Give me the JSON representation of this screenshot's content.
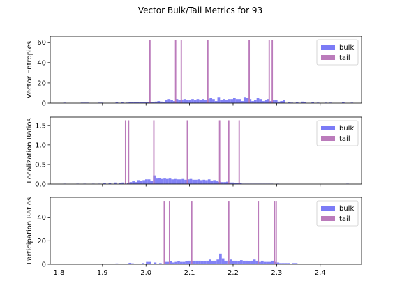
{
  "figure": {
    "title": "Vector Bulk/Tail Metrics for 93"
  },
  "colors": {
    "bulk": "#7b7bf6",
    "tail": "#bb7bbb",
    "axis": "#000000"
  },
  "chart_data": [
    {
      "type": "bar",
      "ylabel": "Vector Entropies",
      "xlim": [
        1.78,
        2.495
      ],
      "ylim": [
        0,
        66
      ],
      "yticks": [
        0,
        20,
        40,
        60
      ],
      "xticks": [
        1.8,
        1.9,
        2.0,
        2.1,
        2.2,
        2.3,
        2.4
      ],
      "show_xticklabels": false,
      "legend": {
        "position": "top-right",
        "entries": [
          "bulk",
          "tail"
        ]
      },
      "series": [
        {
          "name": "bulk",
          "kind": "histogram",
          "bin_width": 0.006,
          "bins": [
            [
              1.81,
              0.5
            ],
            [
              1.85,
              0.5
            ],
            [
              1.856,
              0.5
            ],
            [
              1.862,
              0.5
            ],
            [
              1.89,
              0.5
            ],
            [
              1.896,
              0.5
            ],
            [
              1.93,
              1
            ],
            [
              1.942,
              1
            ],
            [
              1.954,
              0.5
            ],
            [
              1.96,
              1
            ],
            [
              1.966,
              1
            ],
            [
              1.972,
              1
            ],
            [
              1.978,
              1
            ],
            [
              1.984,
              1
            ],
            [
              1.99,
              1
            ],
            [
              1.996,
              1
            ],
            [
              2.002,
              1
            ],
            [
              2.008,
              1
            ],
            [
              2.014,
              1
            ],
            [
              2.02,
              1.5
            ],
            [
              2.026,
              2
            ],
            [
              2.032,
              1.5
            ],
            [
              2.038,
              1
            ],
            [
              2.044,
              3
            ],
            [
              2.05,
              4
            ],
            [
              2.056,
              3
            ],
            [
              2.062,
              2
            ],
            [
              2.068,
              4
            ],
            [
              2.074,
              3
            ],
            [
              2.08,
              3.5
            ],
            [
              2.086,
              4
            ],
            [
              2.092,
              3
            ],
            [
              2.098,
              3
            ],
            [
              2.104,
              4
            ],
            [
              2.11,
              3
            ],
            [
              2.116,
              4
            ],
            [
              2.122,
              3
            ],
            [
              2.128,
              4
            ],
            [
              2.134,
              3
            ],
            [
              2.14,
              4
            ],
            [
              2.146,
              5
            ],
            [
              2.152,
              4
            ],
            [
              2.158,
              2
            ],
            [
              2.164,
              6
            ],
            [
              2.17,
              3
            ],
            [
              2.176,
              4
            ],
            [
              2.182,
              3
            ],
            [
              2.188,
              4
            ],
            [
              2.194,
              4
            ],
            [
              2.2,
              5
            ],
            [
              2.206,
              4
            ],
            [
              2.212,
              4
            ],
            [
              2.218,
              2
            ],
            [
              2.224,
              6
            ],
            [
              2.23,
              5
            ],
            [
              2.236,
              4
            ],
            [
              2.242,
              2
            ],
            [
              2.248,
              3
            ],
            [
              2.254,
              5
            ],
            [
              2.26,
              4
            ],
            [
              2.266,
              2
            ],
            [
              2.272,
              3
            ],
            [
              2.278,
              4
            ],
            [
              2.284,
              2
            ],
            [
              2.29,
              3
            ],
            [
              2.296,
              3
            ],
            [
              2.302,
              1.5
            ],
            [
              2.308,
              2
            ],
            [
              2.314,
              3
            ],
            [
              2.326,
              1
            ],
            [
              2.332,
              0.5
            ],
            [
              2.344,
              1
            ],
            [
              2.356,
              1.5
            ],
            [
              2.362,
              1
            ],
            [
              2.38,
              1
            ],
            [
              2.392,
              0.5
            ],
            [
              2.41,
              0.5
            ],
            [
              2.42,
              0.5
            ],
            [
              2.45,
              0.8
            ],
            [
              2.47,
              0.5
            ]
          ]
        },
        {
          "name": "tail",
          "kind": "spikes",
          "bin_width": 0.003,
          "points": [
            [
              2.009,
              62.5
            ],
            [
              2.068,
              62.5
            ],
            [
              2.081,
              62.5
            ],
            [
              2.142,
              62.5
            ],
            [
              2.237,
              62.5
            ],
            [
              2.283,
              62.5
            ],
            [
              2.29,
              62.5
            ]
          ]
        }
      ]
    },
    {
      "type": "bar",
      "ylabel": "Localization Ratios",
      "xlim": [
        1.78,
        2.495
      ],
      "ylim": [
        0,
        1.71
      ],
      "yticks": [
        0.0,
        0.5,
        1.0,
        1.5
      ],
      "ytick_labels": [
        "0.0",
        "0.5",
        "1.0",
        "1.5"
      ],
      "xticks": [
        1.8,
        1.9,
        2.0,
        2.1,
        2.2,
        2.3,
        2.4
      ],
      "show_xticklabels": false,
      "legend": {
        "position": "top-right",
        "entries": [
          "bulk",
          "tail"
        ]
      },
      "series": [
        {
          "name": "bulk",
          "kind": "histogram",
          "bin_width": 0.006,
          "bins": [
            [
              1.81,
              0.01
            ],
            [
              1.84,
              0.01
            ],
            [
              1.856,
              0.01
            ],
            [
              1.876,
              0.01
            ],
            [
              1.89,
              0.01
            ],
            [
              1.902,
              0.02
            ],
            [
              1.914,
              0.02
            ],
            [
              1.926,
              0.04
            ],
            [
              1.938,
              0.03
            ],
            [
              1.944,
              0.04
            ],
            [
              1.956,
              0.02
            ],
            [
              1.962,
              0.05
            ],
            [
              1.968,
              0.07
            ],
            [
              1.974,
              0.05
            ],
            [
              1.98,
              0.1
            ],
            [
              1.986,
              0.08
            ],
            [
              1.992,
              0.1
            ],
            [
              1.998,
              0.12
            ],
            [
              2.004,
              0.12
            ],
            [
              2.01,
              0.08
            ],
            [
              2.016,
              0.22
            ],
            [
              2.022,
              0.14
            ],
            [
              2.028,
              0.15
            ],
            [
              2.034,
              0.13
            ],
            [
              2.04,
              0.14
            ],
            [
              2.046,
              0.13
            ],
            [
              2.052,
              0.14
            ],
            [
              2.058,
              0.12
            ],
            [
              2.064,
              0.13
            ],
            [
              2.07,
              0.12
            ],
            [
              2.076,
              0.12
            ],
            [
              2.082,
              0.13
            ],
            [
              2.088,
              0.11
            ],
            [
              2.094,
              0.12
            ],
            [
              2.1,
              0.13
            ],
            [
              2.106,
              0.11
            ],
            [
              2.112,
              0.11
            ],
            [
              2.118,
              0.12
            ],
            [
              2.124,
              0.1
            ],
            [
              2.13,
              0.11
            ],
            [
              2.136,
              0.1
            ],
            [
              2.142,
              0.12
            ],
            [
              2.148,
              0.09
            ],
            [
              2.154,
              0.1
            ],
            [
              2.16,
              0.07
            ],
            [
              2.166,
              0.06
            ],
            [
              2.172,
              0.05
            ],
            [
              2.178,
              0.05
            ],
            [
              2.184,
              0.06
            ],
            [
              2.19,
              0.04
            ],
            [
              2.196,
              0.04
            ],
            [
              2.202,
              0.02
            ],
            [
              2.208,
              0.02
            ],
            [
              2.214,
              0.03
            ],
            [
              2.22,
              0.01
            ],
            [
              2.226,
              0.01
            ],
            [
              2.232,
              0.01
            ],
            [
              2.238,
              0.01
            ],
            [
              2.244,
              0.01
            ],
            [
              2.25,
              0.01
            ],
            [
              2.256,
              0.01
            ],
            [
              2.262,
              0.01
            ],
            [
              2.268,
              0.01
            ],
            [
              2.274,
              0.01
            ],
            [
              2.28,
              0.01
            ],
            [
              2.286,
              0.01
            ],
            [
              2.3,
              0.01
            ],
            [
              2.46,
              0.01
            ]
          ]
        },
        {
          "name": "tail",
          "kind": "spikes",
          "bin_width": 0.003,
          "points": [
            [
              1.953,
              1.63
            ],
            [
              1.96,
              1.63
            ],
            [
              2.018,
              1.63
            ],
            [
              2.095,
              1.63
            ],
            [
              2.169,
              1.63
            ],
            [
              2.19,
              1.63
            ],
            [
              2.214,
              1.63
            ]
          ]
        }
      ]
    },
    {
      "type": "bar",
      "ylabel": "Participation Ratios",
      "xlim": [
        1.78,
        2.495
      ],
      "ylim": [
        0,
        57
      ],
      "yticks": [
        0,
        20,
        40
      ],
      "xticks": [
        1.8,
        1.9,
        2.0,
        2.1,
        2.2,
        2.3,
        2.4
      ],
      "xtick_labels": [
        "1.8",
        "1.9",
        "2.0",
        "2.1",
        "2.2",
        "2.3",
        "2.4"
      ],
      "show_xticklabels": true,
      "legend": {
        "position": "top-right",
        "entries": [
          "bulk",
          "tail"
        ]
      },
      "series": [
        {
          "name": "bulk",
          "kind": "histogram",
          "bin_width": 0.006,
          "bins": [
            [
              1.8,
              0.5
            ],
            [
              1.9,
              0.5
            ],
            [
              1.93,
              0.7
            ],
            [
              1.936,
              0.5
            ],
            [
              1.96,
              1.2
            ],
            [
              1.966,
              0.8
            ],
            [
              1.978,
              0.6
            ],
            [
              1.99,
              1
            ],
            [
              2.0,
              2
            ],
            [
              2.006,
              2
            ],
            [
              2.018,
              1.5
            ],
            [
              2.03,
              1
            ],
            [
              2.042,
              2
            ],
            [
              2.048,
              2
            ],
            [
              2.054,
              2.5
            ],
            [
              2.06,
              1.5
            ],
            [
              2.066,
              2
            ],
            [
              2.072,
              2.5
            ],
            [
              2.078,
              2
            ],
            [
              2.084,
              2
            ],
            [
              2.09,
              2.5
            ],
            [
              2.096,
              3
            ],
            [
              2.102,
              2.5
            ],
            [
              2.108,
              3
            ],
            [
              2.114,
              3
            ],
            [
              2.12,
              3
            ],
            [
              2.126,
              2.5
            ],
            [
              2.132,
              2.5
            ],
            [
              2.138,
              3
            ],
            [
              2.144,
              4
            ],
            [
              2.15,
              3
            ],
            [
              2.156,
              3
            ],
            [
              2.162,
              4
            ],
            [
              2.168,
              9
            ],
            [
              2.174,
              5
            ],
            [
              2.18,
              3
            ],
            [
              2.186,
              3
            ],
            [
              2.192,
              4
            ],
            [
              2.198,
              3
            ],
            [
              2.204,
              3
            ],
            [
              2.21,
              2.5
            ],
            [
              2.216,
              3.5
            ],
            [
              2.222,
              3
            ],
            [
              2.228,
              3
            ],
            [
              2.234,
              2.5
            ],
            [
              2.24,
              3
            ],
            [
              2.246,
              4
            ],
            [
              2.252,
              3
            ],
            [
              2.258,
              2
            ],
            [
              2.264,
              3
            ],
            [
              2.27,
              2
            ],
            [
              2.276,
              2
            ],
            [
              2.282,
              2
            ],
            [
              2.288,
              3
            ],
            [
              2.294,
              2
            ],
            [
              2.3,
              1.5
            ],
            [
              2.306,
              1
            ],
            [
              2.312,
              1
            ],
            [
              2.318,
              1
            ],
            [
              2.324,
              1
            ],
            [
              2.33,
              0.5
            ],
            [
              2.336,
              1
            ],
            [
              2.342,
              1
            ],
            [
              2.348,
              0.5
            ],
            [
              2.36,
              0.5
            ],
            [
              2.4,
              0.5
            ],
            [
              2.42,
              0.5
            ]
          ]
        },
        {
          "name": "tail",
          "kind": "spikes",
          "bin_width": 0.003,
          "points": [
            [
              2.042,
              54
            ],
            [
              2.054,
              54
            ],
            [
              2.105,
              54
            ],
            [
              2.19,
              54
            ],
            [
              2.258,
              54
            ],
            [
              2.295,
              54
            ],
            [
              2.299,
              54
            ]
          ]
        }
      ]
    }
  ]
}
